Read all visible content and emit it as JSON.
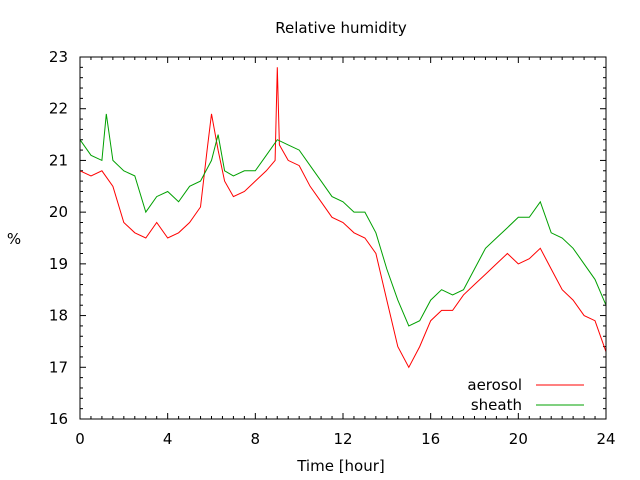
{
  "chart_data": {
    "type": "line",
    "title": "Relative humidity",
    "xlabel": "Time [hour]",
    "ylabel": "%",
    "xlim": [
      0,
      24
    ],
    "ylim": [
      16,
      23
    ],
    "xticks": [
      0,
      4,
      8,
      12,
      16,
      20,
      24
    ],
    "yticks": [
      16,
      17,
      18,
      19,
      20,
      21,
      22,
      23
    ],
    "grid": false,
    "legend_position": "bottom-right",
    "series": [
      {
        "name": "aerosol",
        "color": "#ff0000",
        "x": [
          0,
          0.5,
          1,
          1.5,
          2,
          2.5,
          3,
          3.5,
          4,
          4.5,
          5,
          5.5,
          5.8,
          6,
          6.3,
          6.6,
          7,
          7.5,
          8,
          8.5,
          8.9,
          9.0,
          9.1,
          9.5,
          10,
          10.5,
          11,
          11.5,
          12,
          12.5,
          13,
          13.5,
          14,
          14.5,
          15,
          15.5,
          16,
          16.5,
          17,
          17.5,
          18,
          18.5,
          19,
          19.5,
          20,
          20.5,
          21,
          21.5,
          22,
          22.5,
          23,
          23.5,
          24
        ],
        "values": [
          20.8,
          20.7,
          20.8,
          20.5,
          19.8,
          19.6,
          19.5,
          19.8,
          19.5,
          19.6,
          19.8,
          20.1,
          21.2,
          21.9,
          21.2,
          20.6,
          20.3,
          20.4,
          20.6,
          20.8,
          21.0,
          22.8,
          21.3,
          21.0,
          20.9,
          20.5,
          20.2,
          19.9,
          19.8,
          19.6,
          19.5,
          19.2,
          18.3,
          17.4,
          17.0,
          17.4,
          17.9,
          18.1,
          18.1,
          18.4,
          18.6,
          18.8,
          19.0,
          19.2,
          19.0,
          19.1,
          19.3,
          18.9,
          18.5,
          18.3,
          18.0,
          17.9,
          17.3
        ]
      },
      {
        "name": "sheath",
        "color": "#00a000",
        "x": [
          0,
          0.5,
          1,
          1.2,
          1.5,
          2,
          2.5,
          3,
          3.5,
          4,
          4.5,
          5,
          5.5,
          6,
          6.3,
          6.6,
          7,
          7.5,
          8,
          8.5,
          9,
          9.5,
          10,
          10.5,
          11,
          11.5,
          12,
          12.5,
          13,
          13.5,
          14,
          14.5,
          15,
          15.5,
          16,
          16.5,
          17,
          17.5,
          18,
          18.5,
          19,
          19.5,
          20,
          20.5,
          21,
          21.5,
          22,
          22.5,
          23,
          23.5,
          24
        ],
        "values": [
          21.4,
          21.1,
          21.0,
          21.9,
          21.0,
          20.8,
          20.7,
          20.0,
          20.3,
          20.4,
          20.2,
          20.5,
          20.6,
          21.0,
          21.5,
          20.8,
          20.7,
          20.8,
          20.8,
          21.1,
          21.4,
          21.3,
          21.2,
          20.9,
          20.6,
          20.3,
          20.2,
          20.0,
          20.0,
          19.6,
          18.9,
          18.3,
          17.8,
          17.9,
          18.3,
          18.5,
          18.4,
          18.5,
          18.9,
          19.3,
          19.5,
          19.7,
          19.9,
          19.9,
          20.2,
          19.6,
          19.5,
          19.3,
          19.0,
          18.7,
          18.2
        ]
      }
    ]
  }
}
